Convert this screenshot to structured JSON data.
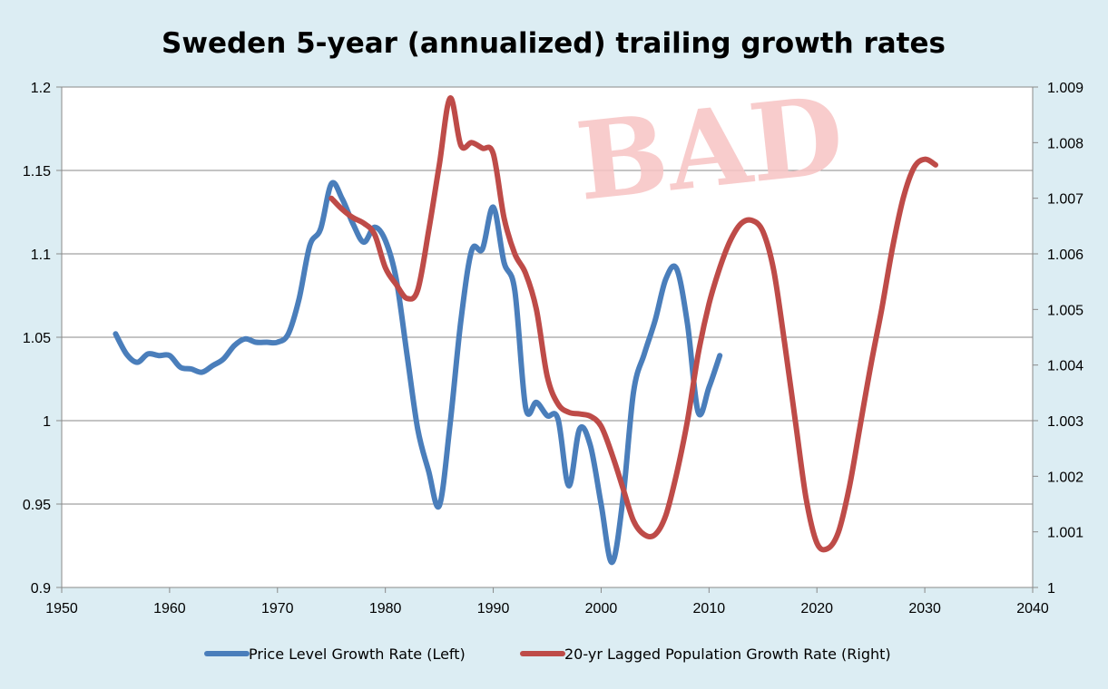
{
  "stamp": {
    "text": "BAD",
    "color": "#f7c3c3"
  },
  "colors": {
    "background": "#dcedf3",
    "plot_area": "#ffffff",
    "grid": "#8a8a8a"
  },
  "chart_data": {
    "type": "line",
    "title": "Sweden 5-year (annualized) trailing growth rates",
    "xlabel": "",
    "ylabel_left": "",
    "ylabel_right": "",
    "xlim": [
      1950,
      2040
    ],
    "ylim_left": [
      0.9,
      1.2
    ],
    "ylim_right": [
      1.0,
      1.009
    ],
    "x_ticks": [
      "1950",
      "1960",
      "1970",
      "1980",
      "1990",
      "2000",
      "2010",
      "2020",
      "2030",
      "2040"
    ],
    "y_ticks_left": [
      "0.9",
      "0.95",
      "1",
      "1.05",
      "1.1",
      "1.15",
      "1.2"
    ],
    "y_ticks_right": [
      "1",
      "1.001",
      "1.002",
      "1.003",
      "1.004",
      "1.005",
      "1.006",
      "1.007",
      "1.008",
      "1.009"
    ],
    "grid": true,
    "legend_position": "bottom",
    "series": [
      {
        "name": "Price Level Growth Rate (Left)",
        "axis": "left",
        "color": "#4a7ebb",
        "points": [
          [
            1955,
            1.052
          ],
          [
            1956,
            1.04
          ],
          [
            1957,
            1.035
          ],
          [
            1958,
            1.04
          ],
          [
            1959,
            1.039
          ],
          [
            1960,
            1.039
          ],
          [
            1961,
            1.032
          ],
          [
            1962,
            1.031
          ],
          [
            1963,
            1.029
          ],
          [
            1964,
            1.033
          ],
          [
            1965,
            1.037
          ],
          [
            1966,
            1.045
          ],
          [
            1967,
            1.049
          ],
          [
            1968,
            1.047
          ],
          [
            1969,
            1.047
          ],
          [
            1970,
            1.047
          ],
          [
            1971,
            1.052
          ],
          [
            1972,
            1.073
          ],
          [
            1973,
            1.105
          ],
          [
            1974,
            1.115
          ],
          [
            1975,
            1.142
          ],
          [
            1976,
            1.133
          ],
          [
            1977,
            1.118
          ],
          [
            1978,
            1.107
          ],
          [
            1979,
            1.116
          ],
          [
            1980,
            1.108
          ],
          [
            1981,
            1.085
          ],
          [
            1982,
            1.04
          ],
          [
            1983,
            0.995
          ],
          [
            1984,
            0.97
          ],
          [
            1985,
            0.949
          ],
          [
            1986,
            0.998
          ],
          [
            1987,
            1.06
          ],
          [
            1988,
            1.102
          ],
          [
            1989,
            1.103
          ],
          [
            1990,
            1.128
          ],
          [
            1991,
            1.095
          ],
          [
            1992,
            1.078
          ],
          [
            1993,
            1.008
          ],
          [
            1994,
            1.011
          ],
          [
            1995,
            1.003
          ],
          [
            1996,
            1.001
          ],
          [
            1997,
            0.961
          ],
          [
            1998,
            0.995
          ],
          [
            1999,
            0.985
          ],
          [
            2000,
            0.95
          ],
          [
            2001,
            0.915
          ],
          [
            2002,
            0.952
          ],
          [
            2003,
            1.017
          ],
          [
            2004,
            1.04
          ],
          [
            2005,
            1.06
          ],
          [
            2006,
            1.085
          ],
          [
            2007,
            1.091
          ],
          [
            2008,
            1.058
          ],
          [
            2009,
            1.005
          ],
          [
            2010,
            1.02
          ],
          [
            2011,
            1.039
          ]
        ]
      },
      {
        "name": "20-yr Lagged Population Growth Rate (Right)",
        "axis": "right",
        "color": "#be4b48",
        "points": [
          [
            1975,
            1.007
          ],
          [
            1976,
            1.0068
          ],
          [
            1977,
            1.00665
          ],
          [
            1978,
            1.00655
          ],
          [
            1979,
            1.00635
          ],
          [
            1980,
            1.00575
          ],
          [
            1981,
            1.00545
          ],
          [
            1982,
            1.0052
          ],
          [
            1983,
            1.00535
          ],
          [
            1984,
            1.0064
          ],
          [
            1985,
            1.0076
          ],
          [
            1986,
            1.0088
          ],
          [
            1987,
            1.00795
          ],
          [
            1988,
            1.008
          ],
          [
            1989,
            1.0079
          ],
          [
            1990,
            1.0078
          ],
          [
            1991,
            1.00665
          ],
          [
            1992,
            1.006
          ],
          [
            1993,
            1.00565
          ],
          [
            1994,
            1.005
          ],
          [
            1995,
            1.0038
          ],
          [
            1996,
            1.0033
          ],
          [
            1997,
            1.00315
          ],
          [
            1998,
            1.00312
          ],
          [
            1999,
            1.00308
          ],
          [
            2000,
            1.0029
          ],
          [
            2001,
            1.0024
          ],
          [
            2002,
            1.0018
          ],
          [
            2003,
            1.0012
          ],
          [
            2004,
            1.00095
          ],
          [
            2005,
            1.00095
          ],
          [
            2006,
            1.0013
          ],
          [
            2007,
            1.00205
          ],
          [
            2008,
            1.003
          ],
          [
            2009,
            1.0042
          ],
          [
            2010,
            1.0051
          ],
          [
            2011,
            1.00575
          ],
          [
            2012,
            1.00625
          ],
          [
            2013,
            1.00655
          ],
          [
            2014,
            1.0066
          ],
          [
            2015,
            1.0064
          ],
          [
            2016,
            1.0057
          ],
          [
            2017,
            1.0044
          ],
          [
            2018,
            1.003
          ],
          [
            2019,
            1.0016
          ],
          [
            2020,
            1.0008
          ],
          [
            2021,
            1.0007
          ],
          [
            2022,
            1.001
          ],
          [
            2023,
            1.0018
          ],
          [
            2024,
            1.0029
          ],
          [
            2025,
            1.004
          ],
          [
            2026,
            1.005
          ],
          [
            2027,
            1.0061
          ],
          [
            2028,
            1.007
          ],
          [
            2029,
            1.00755
          ],
          [
            2030,
            1.0077
          ],
          [
            2031,
            1.0076
          ]
        ]
      }
    ]
  }
}
